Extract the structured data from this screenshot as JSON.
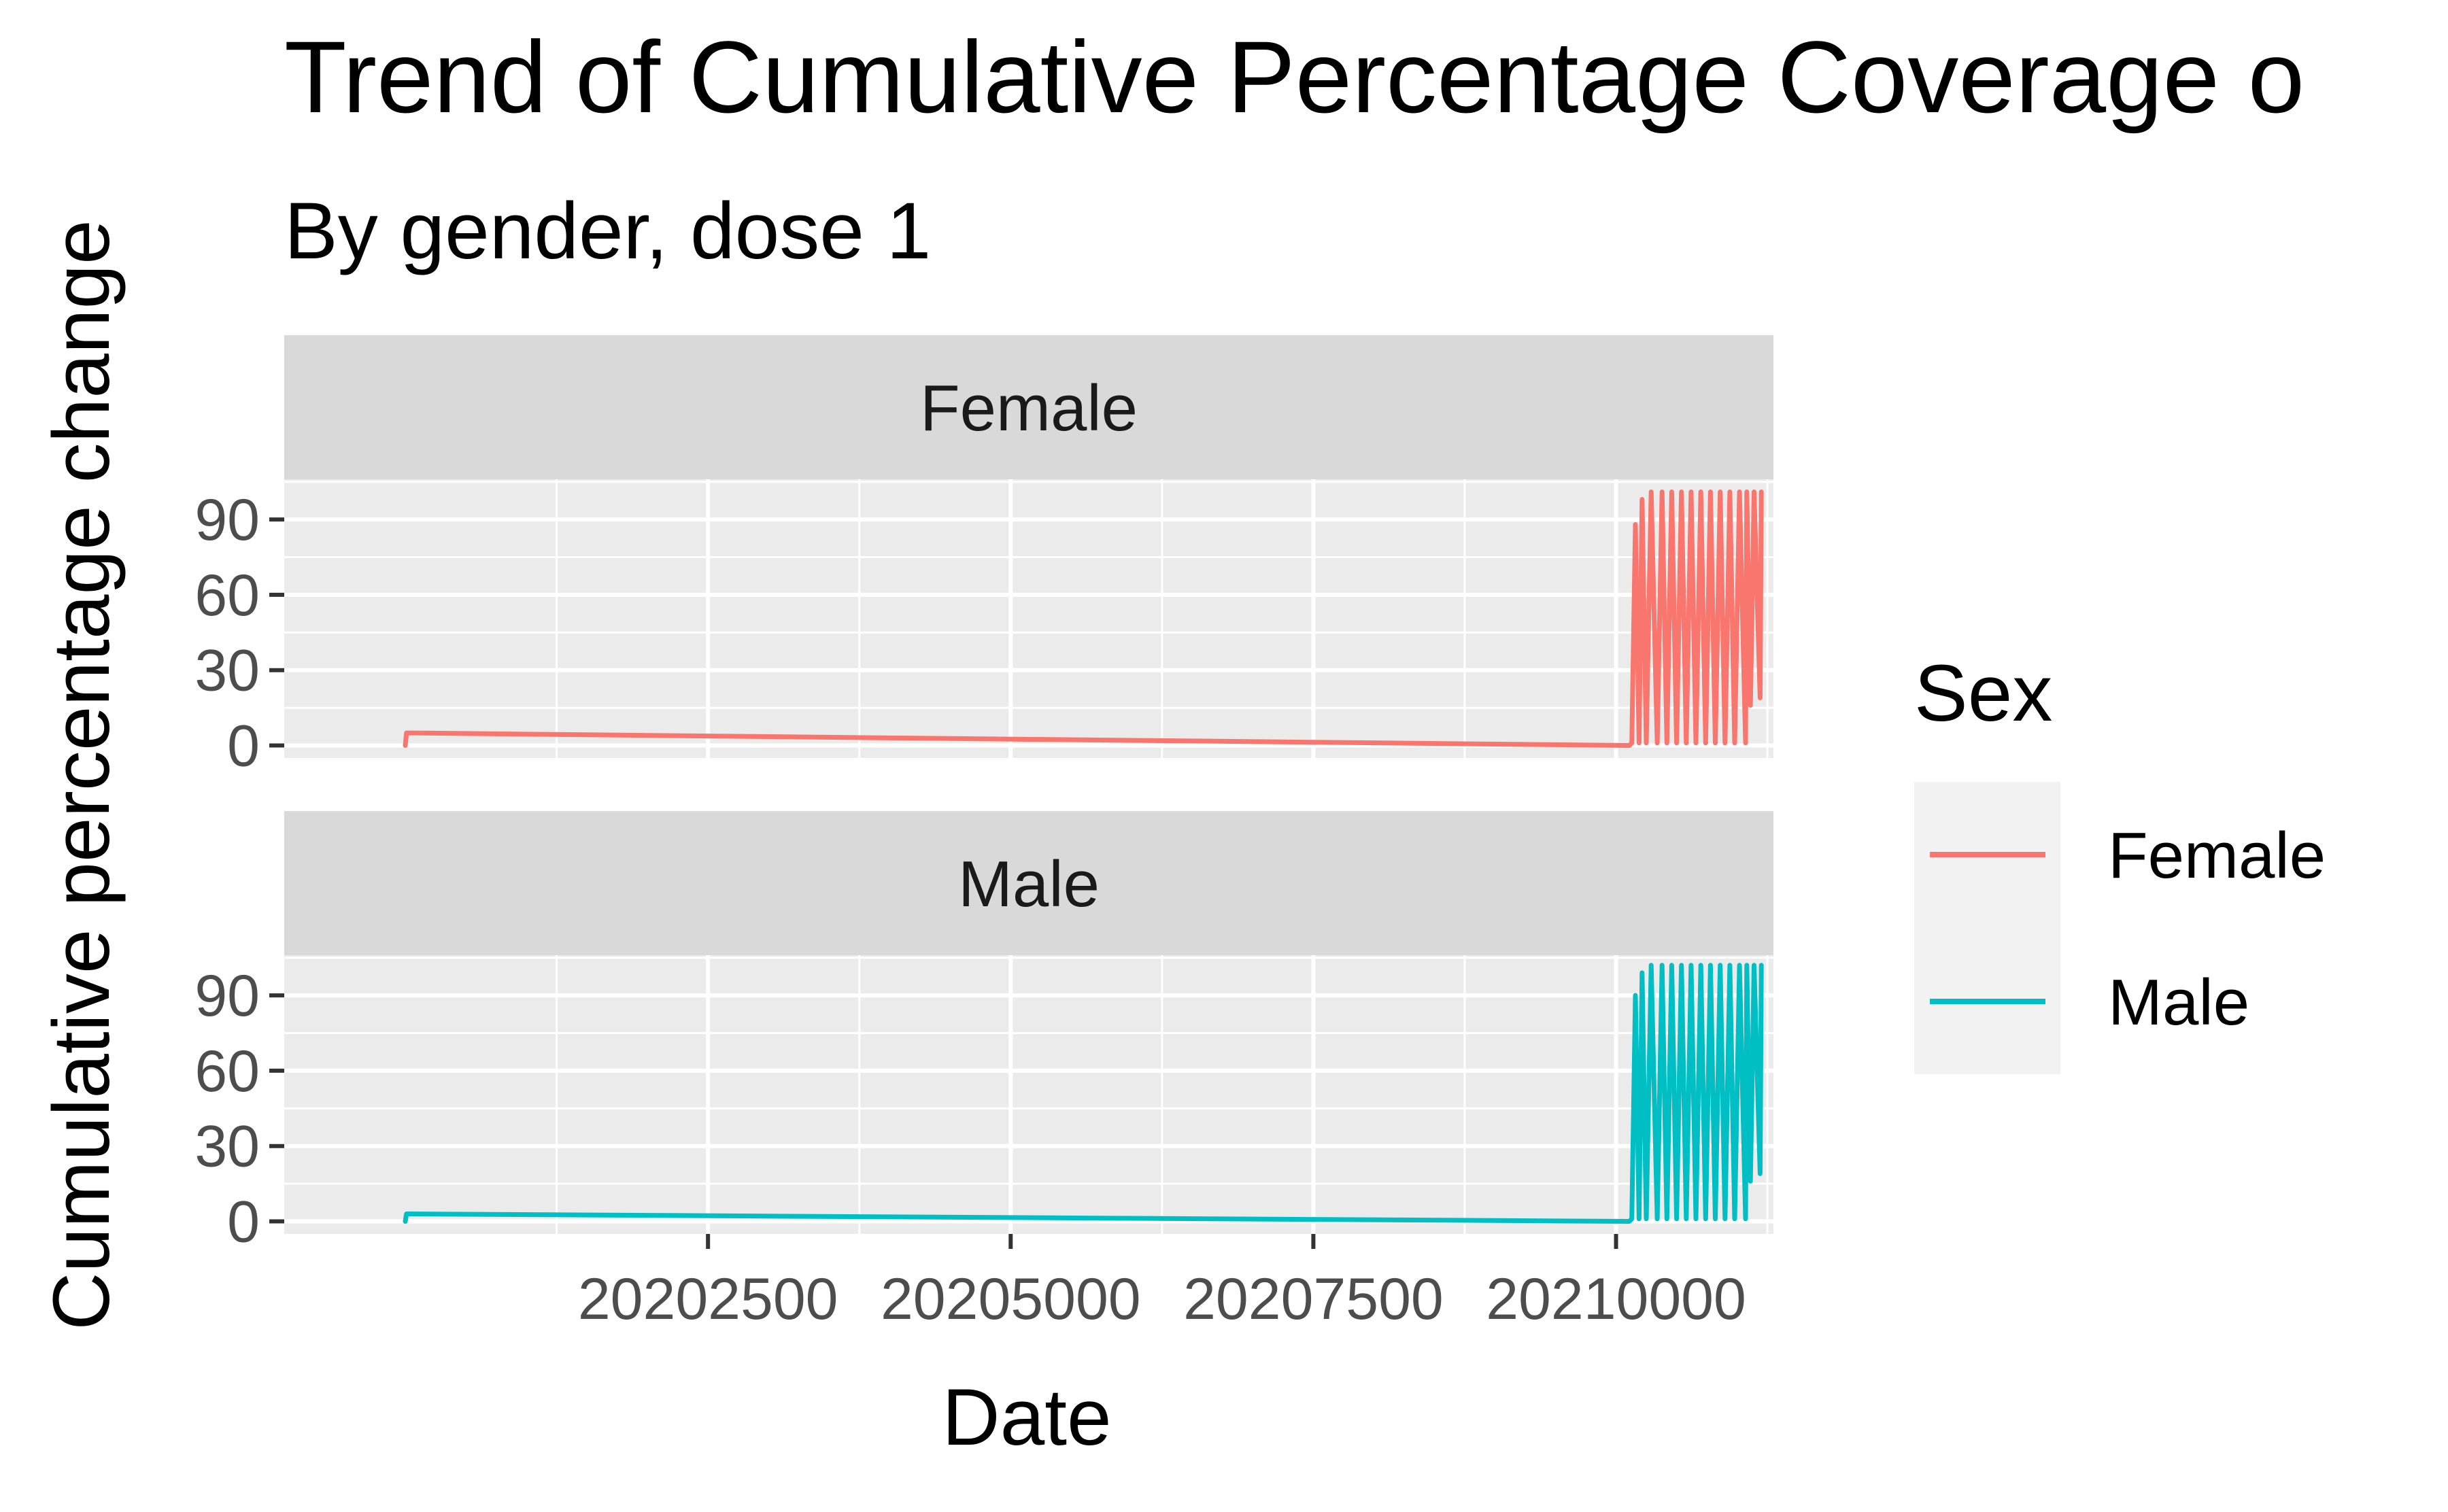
{
  "chart_data": {
    "type": "line",
    "title": "Trend of Cumulative Percentage Coverage o",
    "subtitle": "By gender, dose 1",
    "xlabel": "Date",
    "ylabel": "Cumulative percentage change",
    "x_ticks": [
      20202500,
      20205000,
      20207500,
      20210000
    ],
    "y_ticks": [
      0,
      30,
      60,
      90
    ],
    "xlim": [
      20199000,
      20211300
    ],
    "ylim": [
      -5,
      106
    ],
    "grid": true,
    "facets": [
      "Female",
      "Male"
    ],
    "legend": {
      "title": "Sex",
      "position": "right",
      "entries": [
        "Female",
        "Male"
      ]
    },
    "colors": {
      "Female": "#F8766D",
      "Male": "#00BFC4"
    },
    "series": [
      {
        "name": "Female",
        "x": [
          20200000,
          20200010,
          20200040,
          20210100,
          20210110,
          20210130,
          20210160,
          20210190,
          20210215,
          20210250,
          20210290,
          20210340,
          20210380,
          20210420,
          20210460,
          20210500,
          20210540,
          20210580,
          20210620,
          20210660,
          20210700,
          20210740,
          20210780,
          20210820,
          20210860,
          20210900,
          20210940,
          20210980,
          20211020,
          20211070,
          20211080,
          20211110,
          20211140,
          20211190,
          20211200
        ],
        "y": [
          0,
          5,
          5,
          0,
          0,
          1,
          88,
          1,
          98,
          1,
          101,
          1,
          101,
          1,
          101,
          1,
          101,
          1,
          101,
          1,
          101,
          1,
          101,
          1,
          101,
          1,
          101,
          1,
          101,
          1,
          101,
          16,
          101,
          19,
          101
        ]
      },
      {
        "name": "Male",
        "x": [
          20200000,
          20200010,
          20200040,
          20210100,
          20210110,
          20210130,
          20210160,
          20210190,
          20210215,
          20210250,
          20210290,
          20210340,
          20210380,
          20210420,
          20210460,
          20210500,
          20210540,
          20210580,
          20210620,
          20210660,
          20210700,
          20210740,
          20210780,
          20210820,
          20210860,
          20210900,
          20210940,
          20210980,
          20211020,
          20211070,
          20211080,
          20211110,
          20211140,
          20211190,
          20211200
        ],
        "y": [
          0,
          3,
          3,
          0,
          0,
          1,
          90,
          1,
          99,
          1,
          102,
          1,
          102,
          1,
          102,
          1,
          102,
          1,
          102,
          1,
          102,
          1,
          102,
          1,
          102,
          1,
          102,
          1,
          102,
          1,
          102,
          16,
          102,
          19,
          102
        ]
      }
    ]
  }
}
